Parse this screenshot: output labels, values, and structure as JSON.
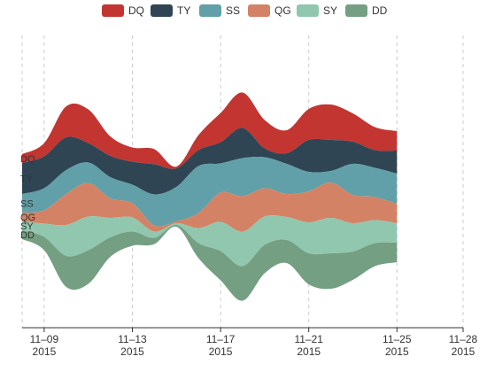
{
  "chart_data": {
    "type": "area",
    "variant": "themeRiver",
    "grid": "vertical dashed lines at major ticks",
    "legend_placement": "top-center",
    "xlim": [
      "2015-11-08",
      "2015-11-28"
    ],
    "x_ticks": [
      {
        "date": "2015-11-09",
        "line1": "11–09",
        "line2": "2015"
      },
      {
        "date": "2015-11-13",
        "line1": "11–13",
        "line2": "2015"
      },
      {
        "date": "2015-11-17",
        "line1": "11–17",
        "line2": "2015"
      },
      {
        "date": "2015-11-21",
        "line1": "11–21",
        "line2": "2015"
      },
      {
        "date": "2015-11-25",
        "line1": "11–25",
        "line2": "2015"
      },
      {
        "date": "2015-11-28",
        "line1": "11–28",
        "line2": "2015"
      }
    ],
    "x": [
      "2015-11-08",
      "2015-11-09",
      "2015-11-10",
      "2015-11-11",
      "2015-11-12",
      "2015-11-13",
      "2015-11-14",
      "2015-11-15",
      "2015-11-16",
      "2015-11-17",
      "2015-11-18",
      "2015-11-19",
      "2015-11-20",
      "2015-11-21",
      "2015-11-22",
      "2015-11-23",
      "2015-11-24",
      "2015-11-25"
    ],
    "series": [
      {
        "name": "DQ",
        "color": "#c23531",
        "values": [
          10,
          15,
          35,
          38,
          22,
          16,
          17,
          2,
          17,
          33,
          40,
          32,
          26,
          35,
          40,
          32,
          26,
          22
        ]
      },
      {
        "name": "TY",
        "color": "#2f4554",
        "values": [
          35,
          36,
          37,
          22,
          24,
          26,
          34,
          21,
          18,
          24,
          34,
          10,
          12,
          36,
          35,
          25,
          20,
          26
        ]
      },
      {
        "name": "SS",
        "color": "#61a0a8",
        "values": [
          21,
          25,
          27,
          23,
          24,
          21,
          35,
          39,
          53,
          33,
          43,
          35,
          34,
          22,
          13,
          35,
          33,
          34
        ]
      },
      {
        "name": "QG",
        "color": "#d48265",
        "values": [
          10,
          15,
          35,
          38,
          22,
          16,
          7,
          2,
          17,
          33,
          40,
          32,
          26,
          35,
          40,
          32,
          26,
          22
        ]
      },
      {
        "name": "SY",
        "color": "#91c7ae",
        "values": [
          10,
          15,
          35,
          38,
          22,
          16,
          7,
          2,
          17,
          33,
          39,
          32,
          26,
          35,
          40,
          32,
          26,
          22
        ]
      },
      {
        "name": "DD",
        "color": "#749f83",
        "values": [
          10,
          15,
          35,
          38,
          22,
          16,
          7,
          2,
          17,
          33,
          39,
          32,
          26,
          35,
          40,
          32,
          26,
          22
        ]
      }
    ]
  }
}
